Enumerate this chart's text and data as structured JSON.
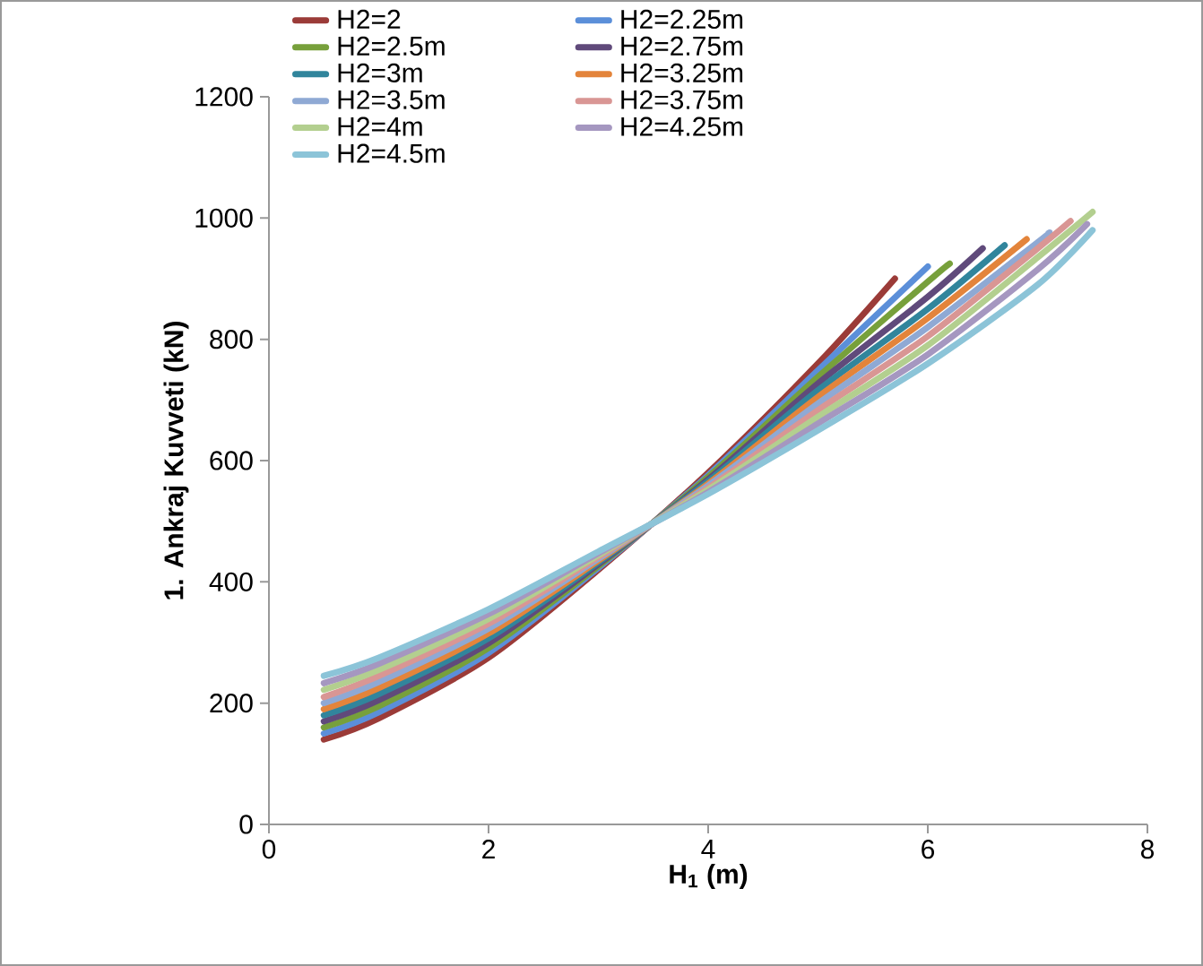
{
  "chart_data": {
    "type": "line",
    "xlabel": "H$_{1}$ (m)",
    "ylabel": "1. Ankraj Kuvveti (kN)",
    "xlim": [
      0,
      8
    ],
    "xticks": [
      0,
      2,
      4,
      6,
      8
    ],
    "ylim": [
      0,
      1200
    ],
    "yticks": [
      0,
      200,
      400,
      600,
      800,
      1000,
      1200
    ],
    "legend": "top",
    "series": [
      {
        "name": "H2=2",
        "color": "#9b3b38",
        "x": [
          0.5,
          1,
          2,
          3,
          4,
          5,
          5.7
        ],
        "values": [
          140,
          175,
          275,
          420,
          580,
          760,
          900
        ]
      },
      {
        "name": "H2=2.25m",
        "color": "#5b8fd9",
        "x": [
          0.5,
          1,
          2,
          3,
          4,
          5,
          6
        ],
        "values": [
          150,
          185,
          283,
          423,
          576,
          749,
          920
        ]
      },
      {
        "name": "H2=2.5m",
        "color": "#77a03b",
        "x": [
          0.5,
          1,
          2,
          3,
          4,
          5,
          6,
          6.2
        ],
        "values": [
          160,
          195,
          291,
          426,
          573,
          738,
          895,
          925
        ]
      },
      {
        "name": "H2=2.75m",
        "color": "#604a7b",
        "x": [
          0.5,
          1,
          2,
          3,
          4,
          5,
          6,
          6.5
        ],
        "values": [
          170,
          205,
          299,
          429,
          569,
          727,
          870,
          950
        ]
      },
      {
        "name": "H2=3m",
        "color": "#31859c",
        "x": [
          0.5,
          1,
          2,
          3,
          4,
          5,
          6,
          6.7
        ],
        "values": [
          180,
          215,
          307,
          432,
          566,
          716,
          850,
          955
        ]
      },
      {
        "name": "H2=3.25m",
        "color": "#e3843b",
        "x": [
          0.5,
          1,
          2,
          3,
          4,
          5,
          6,
          6.9
        ],
        "values": [
          190,
          225,
          315,
          435,
          562,
          705,
          835,
          965
        ]
      },
      {
        "name": "H2=3.5m",
        "color": "#8fa9d4",
        "x": [
          0.5,
          1,
          2,
          3,
          4,
          5,
          6,
          7,
          7.1
        ],
        "values": [
          200,
          235,
          323,
          438,
          559,
          694,
          820,
          960,
          975
        ]
      },
      {
        "name": "H2=3.75m",
        "color": "#d99694",
        "x": [
          0.5,
          1,
          2,
          3,
          4,
          5,
          6,
          7,
          7.3
        ],
        "values": [
          210,
          245,
          331,
          441,
          555,
          683,
          805,
          950,
          995
        ]
      },
      {
        "name": "H2=4m",
        "color": "#b3cf8f",
        "x": [
          0.5,
          1,
          2,
          3,
          4,
          5,
          6,
          7,
          7.5
        ],
        "values": [
          222,
          255,
          339,
          444,
          552,
          672,
          790,
          935,
          1010
        ]
      },
      {
        "name": "H2=4.25m",
        "color": "#a597c0",
        "x": [
          0.5,
          1,
          2,
          3,
          4,
          5,
          6,
          7,
          7.45
        ],
        "values": [
          233,
          265,
          347,
          447,
          548,
          661,
          775,
          915,
          990
        ]
      },
      {
        "name": "H2=4.5m",
        "color": "#8cc4d8",
        "x": [
          0.5,
          1,
          2,
          3,
          4,
          5,
          6,
          7,
          7.5
        ],
        "values": [
          245,
          275,
          355,
          450,
          545,
          650,
          760,
          890,
          980
        ]
      }
    ]
  }
}
